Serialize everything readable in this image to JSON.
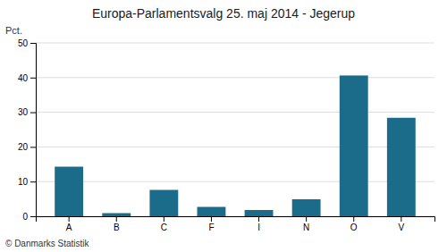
{
  "chart_data": {
    "type": "bar",
    "title": "Europa-Parlamentsvalg 25. maj 2014 - Jegerup",
    "categories": [
      "A",
      "B",
      "C",
      "F",
      "I",
      "N",
      "O",
      "V"
    ],
    "values": [
      14.3,
      0.9,
      7.6,
      2.7,
      1.8,
      4.9,
      40.6,
      28.4
    ],
    "color": "#1b6b8a",
    "ylabel": "Pct.",
    "ylim": [
      0,
      50
    ],
    "yticks": [
      0,
      10,
      20,
      30,
      40,
      50
    ],
    "grid": true,
    "annotations": [
      "© Danmarks Statistik"
    ]
  }
}
